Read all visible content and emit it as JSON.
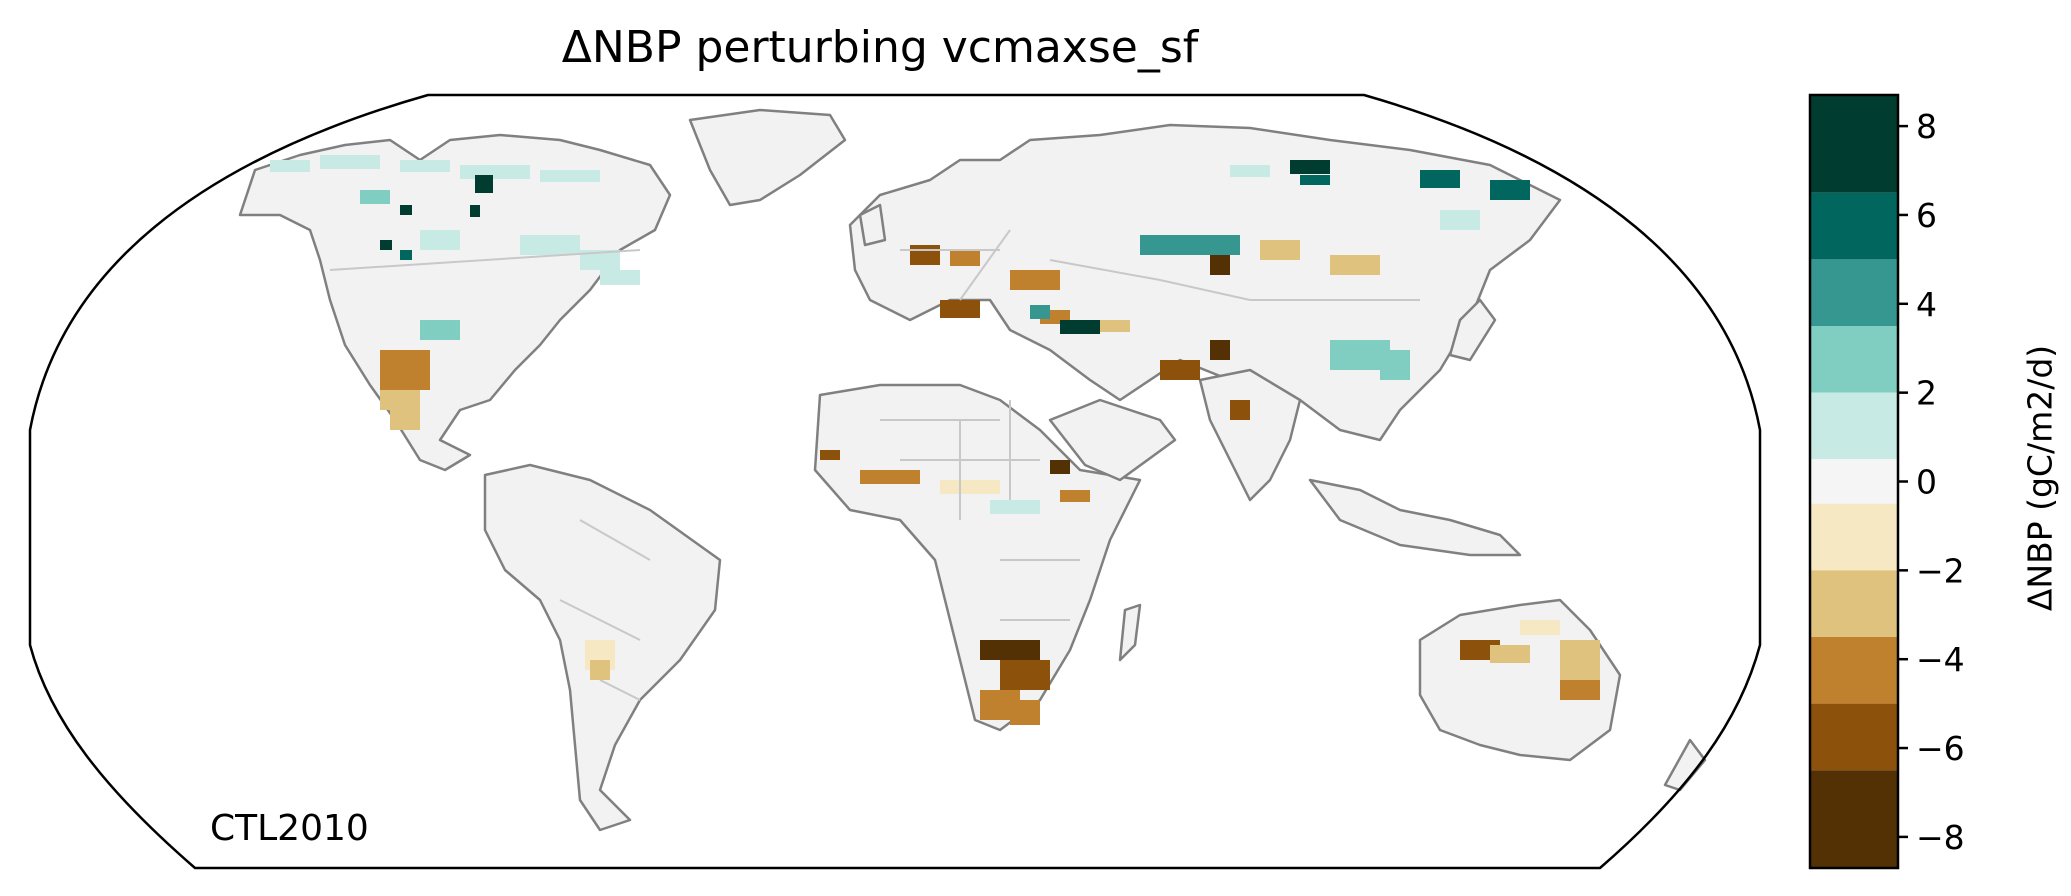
{
  "title": "ΔNBP perturbing vcmaxse_sf",
  "corner_label": "CTL2010",
  "colorbar": {
    "label": "ΔNBP (gC/m2/d)",
    "ticks": [
      8,
      6,
      4,
      2,
      0,
      -2,
      -4,
      -6,
      -8
    ],
    "tick_labels": [
      "8",
      "6",
      "4",
      "2",
      "0",
      "−2",
      "−4",
      "−6",
      "−8"
    ],
    "range": [
      -8.7,
      8.7
    ],
    "bins": [
      {
        "from": 6.5,
        "to": 8.7,
        "color": "#003c30"
      },
      {
        "from": 5.0,
        "to": 6.5,
        "color": "#01665e"
      },
      {
        "from": 3.5,
        "to": 5.0,
        "color": "#35978f"
      },
      {
        "from": 2.0,
        "to": 3.5,
        "color": "#80cdc1"
      },
      {
        "from": 0.5,
        "to": 2.0,
        "color": "#c7eae5"
      },
      {
        "from": -0.5,
        "to": 0.5,
        "color": "#f5f5f5"
      },
      {
        "from": -2.0,
        "to": -0.5,
        "color": "#f6e8c3"
      },
      {
        "from": -3.5,
        "to": -2.0,
        "color": "#dfc27d"
      },
      {
        "from": -5.0,
        "to": -3.5,
        "color": "#bf812d"
      },
      {
        "from": -6.5,
        "to": -5.0,
        "color": "#8c510a"
      },
      {
        "from": -8.7,
        "to": -6.5,
        "color": "#543005"
      }
    ]
  },
  "map": {
    "projection": "Robinson",
    "land_color": "#f2f2f2",
    "coastline_color": "#808080",
    "border_color": "#c8c8c8"
  }
}
